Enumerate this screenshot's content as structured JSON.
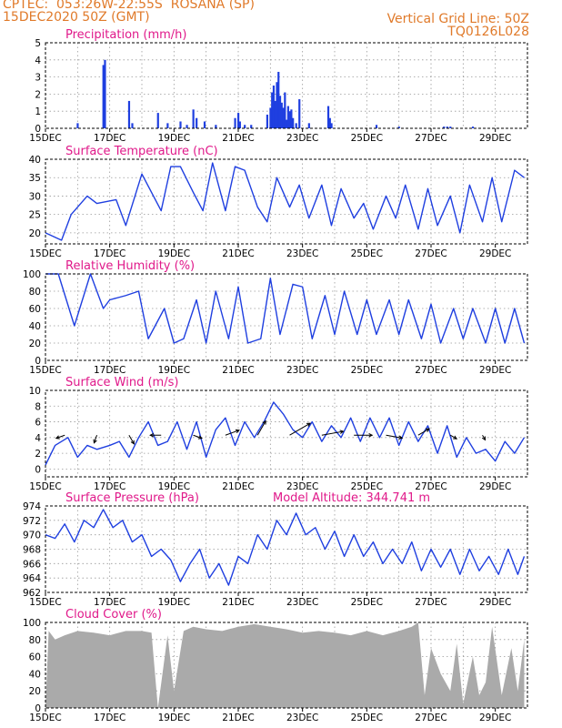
{
  "header": {
    "left_line1": "CPTEC:  053:26W-22:55S  ROSANA (SP)",
    "left_line2": "15DEC2020 50Z (GMT)",
    "right_line1": "Vertical Grid Line: 50Z",
    "right_line2": "TQ0126L028"
  },
  "colors": {
    "header": "#e07a2a",
    "title": "#e0198a",
    "line": "#1f3fe0",
    "bar": "#1f3fe0",
    "cloud": "#aaaaaa",
    "arrow": "#000000"
  },
  "x_labels": [
    "15DEC",
    "17DEC",
    "19DEC",
    "21DEC",
    "23DEC",
    "25DEC",
    "27DEC",
    "29DEC"
  ],
  "chart_data": [
    {
      "type": "bar",
      "title": "Precipitation (mm/h)",
      "ylim": [
        0,
        5
      ],
      "yticks": [
        "0",
        "1",
        "2",
        "3",
        "4",
        "5"
      ],
      "x_unit": "days after 15DEC 00Z",
      "x": [
        1.0,
        1.8,
        1.85,
        2.6,
        2.7,
        3.5,
        3.8,
        4.2,
        4.4,
        4.6,
        4.7,
        4.95,
        5.3,
        5.9,
        6.0,
        6.05,
        6.2,
        6.4,
        6.9,
        7.0,
        7.05,
        7.1,
        7.15,
        7.2,
        7.25,
        7.3,
        7.35,
        7.4,
        7.45,
        7.5,
        7.55,
        7.6,
        7.65,
        7.7,
        7.8,
        7.9,
        8.2,
        8.8,
        8.85,
        8.9,
        10.3,
        11.0,
        12.4,
        12.5,
        12.6,
        13.3
      ],
      "values": [
        0.3,
        3.7,
        4.0,
        1.6,
        0.3,
        0.9,
        0.3,
        0.4,
        0.2,
        1.1,
        0.6,
        0.4,
        0.2,
        0.6,
        0.9,
        0.4,
        0.2,
        0.2,
        0.8,
        1.2,
        2.1,
        2.5,
        1.6,
        2.7,
        3.3,
        1.9,
        1.5,
        1.2,
        2.1,
        0.5,
        1.3,
        1.0,
        1.1,
        0.6,
        0.3,
        1.7,
        0.3,
        1.3,
        0.6,
        0.3,
        0.2,
        0.1,
        0.1,
        0.1,
        0.1,
        0.1
      ]
    },
    {
      "type": "line",
      "title": "Surface Temperature (nC)",
      "ylim": [
        17,
        40
      ],
      "yticks": [
        "20",
        "25",
        "30",
        "35",
        "40"
      ],
      "x_unit": "days after 15DEC 00Z",
      "x": [
        0,
        0.5,
        0.8,
        1.3,
        1.6,
        2.2,
        2.5,
        3.0,
        3.6,
        3.9,
        4.2,
        4.6,
        4.9,
        5.2,
        5.6,
        5.9,
        6.2,
        6.6,
        6.9,
        7.2,
        7.6,
        7.9,
        8.2,
        8.6,
        8.9,
        9.2,
        9.6,
        9.9,
        10.2,
        10.6,
        10.9,
        11.2,
        11.6,
        11.9,
        12.2,
        12.6,
        12.9,
        13.2,
        13.6,
        13.9,
        14.2,
        14.6,
        14.9
      ],
      "values": [
        20,
        18,
        25,
        30,
        28,
        29,
        22,
        36,
        26,
        38,
        38,
        31,
        26,
        39,
        26,
        38,
        37,
        27,
        23,
        35,
        27,
        33,
        24,
        33,
        22,
        32,
        24,
        28,
        21,
        30,
        24,
        33,
        21,
        32,
        22,
        30,
        20,
        33,
        23,
        35,
        23,
        37,
        35
      ]
    },
    {
      "type": "line",
      "title": "Relative Humidity (%)",
      "ylim": [
        0,
        100
      ],
      "yticks": [
        "0",
        "20",
        "40",
        "60",
        "80",
        "100"
      ],
      "x_unit": "days after 15DEC 00Z",
      "x": [
        0,
        0.4,
        0.9,
        1.4,
        1.8,
        2.0,
        2.5,
        2.9,
        3.2,
        3.7,
        4.0,
        4.3,
        4.7,
        5.0,
        5.3,
        5.7,
        6.0,
        6.3,
        6.7,
        7.0,
        7.3,
        7.7,
        8.0,
        8.3,
        8.7,
        9.0,
        9.3,
        9.7,
        10.0,
        10.3,
        10.7,
        11.0,
        11.3,
        11.7,
        12.0,
        12.3,
        12.7,
        13.0,
        13.3,
        13.7,
        14.0,
        14.3,
        14.6,
        14.9
      ],
      "values": [
        100,
        100,
        40,
        100,
        60,
        70,
        75,
        80,
        25,
        60,
        20,
        25,
        70,
        20,
        80,
        25,
        85,
        20,
        25,
        95,
        30,
        88,
        85,
        25,
        75,
        30,
        80,
        30,
        70,
        30,
        70,
        30,
        70,
        25,
        65,
        20,
        60,
        25,
        60,
        20,
        60,
        20,
        60,
        20
      ]
    },
    {
      "type": "line",
      "title": "Surface Wind (m/s)",
      "ylim": [
        -1,
        10
      ],
      "yticks": [
        "0",
        "2",
        "4",
        "6",
        "8",
        "10"
      ],
      "x_unit": "days after 15DEC 00Z",
      "x": [
        0,
        0.3,
        0.7,
        1.0,
        1.3,
        1.6,
        2.0,
        2.3,
        2.6,
        2.9,
        3.2,
        3.5,
        3.8,
        4.1,
        4.4,
        4.7,
        5.0,
        5.3,
        5.6,
        5.9,
        6.2,
        6.5,
        6.8,
        7.1,
        7.4,
        7.7,
        8.0,
        8.3,
        8.6,
        8.9,
        9.2,
        9.5,
        9.8,
        10.1,
        10.4,
        10.7,
        11.0,
        11.3,
        11.6,
        11.9,
        12.2,
        12.5,
        12.8,
        13.1,
        13.4,
        13.7,
        14.0,
        14.3,
        14.6,
        14.9
      ],
      "values": [
        0.5,
        3,
        4,
        1.5,
        3,
        2.5,
        3,
        3.5,
        1.5,
        4,
        6,
        3,
        3.5,
        6,
        2.5,
        6,
        1.5,
        5,
        6.5,
        3,
        6,
        4,
        6,
        8.5,
        7,
        5,
        4,
        6,
        3.5,
        5.5,
        4,
        6.5,
        3.5,
        6.5,
        4,
        6.5,
        3,
        6,
        3.5,
        5.5,
        2,
        5.5,
        1.5,
        4,
        2,
        2.5,
        1,
        3.5,
        2,
        4
      ]
    },
    {
      "type": "line",
      "title": "Surface Pressure (hPa)",
      "annotation": "Model Altitude: 344.741  m",
      "ylim": [
        962,
        974
      ],
      "yticks": [
        "962",
        "964",
        "966",
        "968",
        "970",
        "972",
        "974"
      ],
      "x_unit": "days after 15DEC 00Z",
      "x": [
        0,
        0.3,
        0.6,
        0.9,
        1.2,
        1.5,
        1.8,
        2.1,
        2.4,
        2.7,
        3.0,
        3.3,
        3.6,
        3.9,
        4.2,
        4.5,
        4.8,
        5.1,
        5.4,
        5.7,
        6.0,
        6.3,
        6.6,
        6.9,
        7.2,
        7.5,
        7.8,
        8.1,
        8.4,
        8.7,
        9.0,
        9.3,
        9.6,
        9.9,
        10.2,
        10.5,
        10.8,
        11.1,
        11.4,
        11.7,
        12.0,
        12.3,
        12.6,
        12.9,
        13.2,
        13.5,
        13.8,
        14.1,
        14.4,
        14.7,
        14.9
      ],
      "values": [
        970,
        969.5,
        971.5,
        969,
        972,
        971,
        973.5,
        971,
        972,
        969,
        970,
        967,
        968,
        966.5,
        963.5,
        966,
        968,
        964,
        966,
        963,
        967,
        966,
        970,
        968,
        972,
        970,
        973,
        970,
        971,
        968,
        970.5,
        967,
        970,
        967,
        969,
        966,
        968,
        966,
        969,
        965,
        968,
        965.5,
        968,
        964.5,
        968,
        965,
        967,
        964.5,
        968,
        964.5,
        967
      ]
    },
    {
      "type": "area",
      "title": "Cloud Cover (%)",
      "ylim": [
        0,
        100
      ],
      "yticks": [
        "0",
        "20",
        "40",
        "60",
        "80",
        "100"
      ],
      "x_unit": "days after 15DEC 00Z",
      "x": [
        0,
        0.1,
        0.3,
        0.6,
        1.0,
        1.5,
        2.0,
        2.5,
        3.0,
        3.3,
        3.5,
        3.8,
        4.0,
        4.3,
        4.6,
        5.0,
        5.5,
        6.0,
        6.5,
        7.0,
        7.5,
        8.0,
        8.5,
        9.0,
        9.5,
        10.0,
        10.5,
        11.0,
        11.4,
        11.6,
        11.8,
        12.0,
        12.3,
        12.6,
        12.8,
        13.0,
        13.3,
        13.5,
        13.7,
        13.9,
        14.2,
        14.5,
        14.7,
        14.9
      ],
      "values": [
        0,
        90,
        80,
        85,
        90,
        88,
        85,
        90,
        90,
        88,
        0,
        85,
        20,
        90,
        95,
        92,
        90,
        95,
        98,
        95,
        92,
        88,
        90,
        88,
        85,
        90,
        85,
        90,
        95,
        100,
        15,
        70,
        40,
        20,
        75,
        5,
        60,
        15,
        30,
        95,
        15,
        70,
        20,
        80
      ]
    }
  ]
}
